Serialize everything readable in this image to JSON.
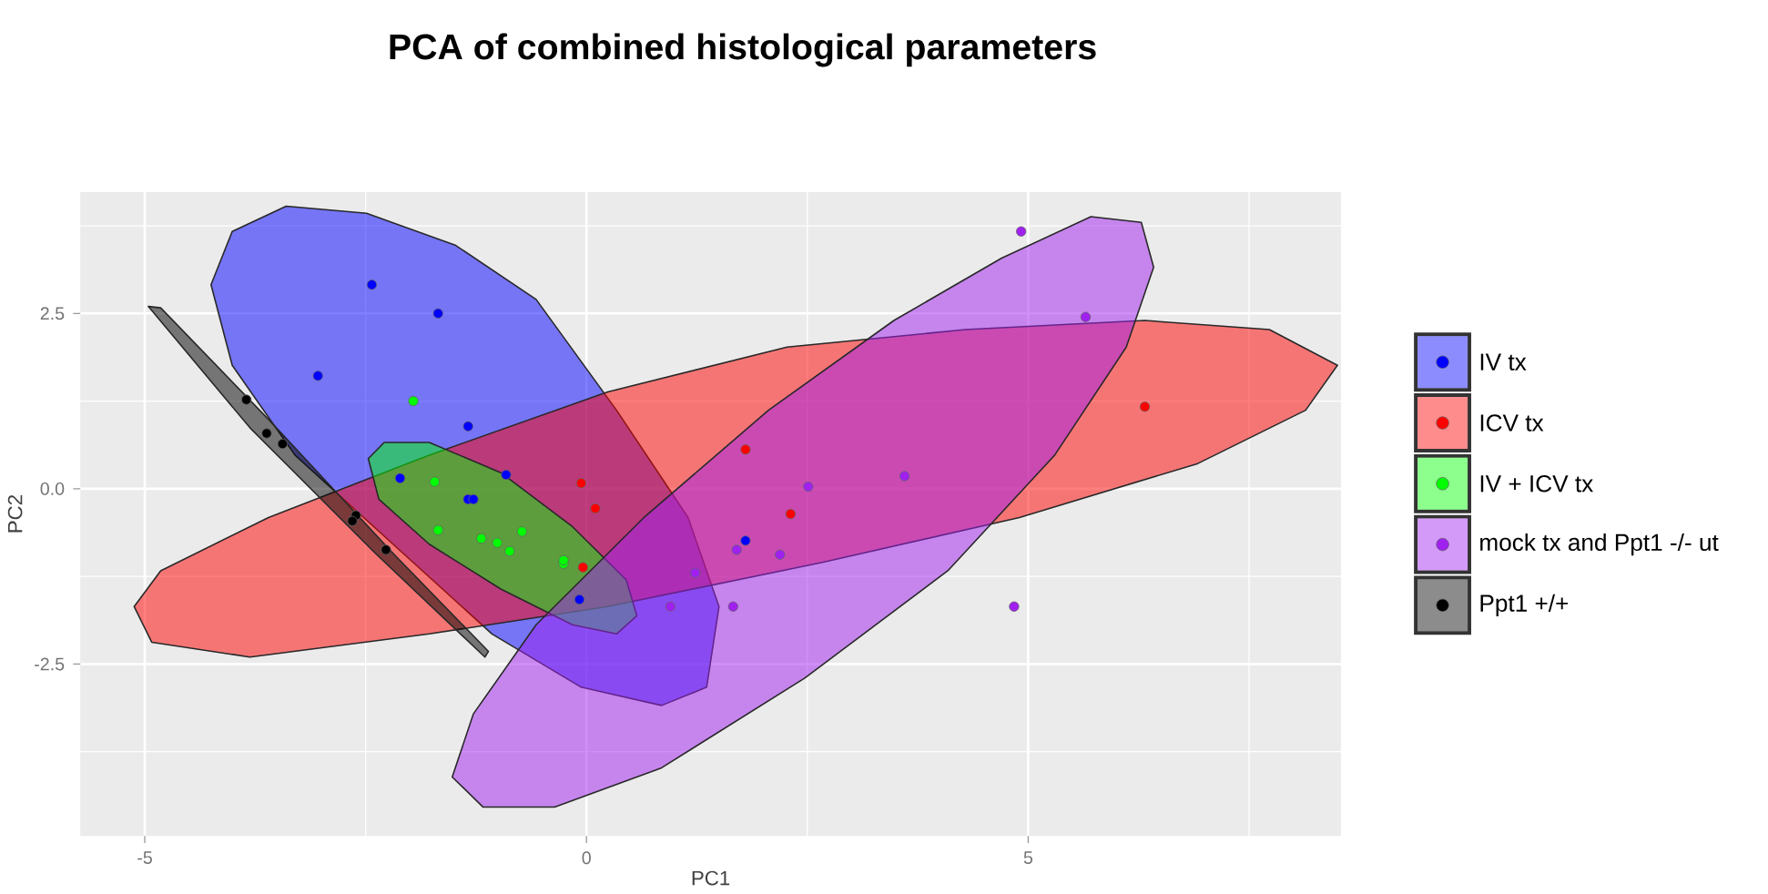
{
  "chart_data": {
    "type": "scatter",
    "title": "PCA of combined histological parameters",
    "xlabel": "PC1",
    "ylabel": "PC2",
    "xlim": [
      -5.73,
      8.54
    ],
    "ylim": [
      -4.95,
      4.23
    ],
    "xticks": [
      -5,
      0,
      5
    ],
    "yticks": [
      -2.5,
      {
        "value": 0,
        "label": "0.0"
      },
      2.5
    ],
    "grid": true,
    "legend": "right",
    "marker": "circle",
    "series": [
      {
        "type": "area",
        "marker": "none",
        "color": "#0000ff",
        "x": [
          -4.25,
          -4.01,
          -3.4,
          -2.49,
          -1.48,
          -0.57,
          0.34,
          1.15,
          1.5,
          1.36,
          0.85,
          -0.06,
          -1.07,
          -2.19,
          -3.3,
          -4.01
        ],
        "values": [
          2.91,
          3.67,
          4.03,
          3.93,
          3.47,
          2.7,
          1.12,
          -0.41,
          -1.68,
          -2.83,
          -3.09,
          -2.83,
          -2.07,
          -0.79,
          0.48,
          1.76
        ]
      },
      {
        "type": "area",
        "marker": "none",
        "color": "#ff0000",
        "x": [
          -5.12,
          -4.82,
          -3.6,
          -1.78,
          0.24,
          2.27,
          4.29,
          6.32,
          7.73,
          8.5,
          8.14,
          6.92,
          4.9,
          2.67,
          0.24,
          -1.78,
          -3.81,
          -4.92
        ],
        "values": [
          -1.68,
          -1.17,
          -0.41,
          0.48,
          1.38,
          2.02,
          2.27,
          2.4,
          2.27,
          1.76,
          1.12,
          0.36,
          -0.41,
          -1.05,
          -1.68,
          -2.07,
          -2.4,
          -2.19
        ]
      },
      {
        "type": "area",
        "marker": "none",
        "color": "#00ff00",
        "x": [
          -2.47,
          -2.29,
          -1.78,
          -0.97,
          -0.16,
          0.45,
          0.57,
          0.34,
          -0.16,
          -0.97,
          -1.78,
          -2.35
        ],
        "values": [
          0.43,
          0.66,
          0.66,
          0.23,
          -0.54,
          -1.3,
          -1.81,
          -2.07,
          -1.94,
          -1.43,
          -0.79,
          -0.15
        ]
      },
      {
        "type": "area",
        "marker": "none",
        "color": "#a020f0",
        "x": [
          -1.52,
          -1.28,
          -0.57,
          0.65,
          2.06,
          3.48,
          4.7,
          5.71,
          6.28,
          6.42,
          6.11,
          5.3,
          4.09,
          2.47,
          0.85,
          -0.36,
          -1.17
        ],
        "values": [
          -4.11,
          -3.21,
          -1.94,
          -0.41,
          1.12,
          2.4,
          3.29,
          3.88,
          3.8,
          3.16,
          2.02,
          0.48,
          -1.17,
          -2.7,
          -3.98,
          -4.54,
          -4.54
        ]
      },
      {
        "type": "area",
        "marker": "none",
        "color": "#000000",
        "x": [
          -4.96,
          -4.82,
          -3.6,
          -2.19,
          -1.11,
          -1.15,
          -2.39,
          -3.81
        ],
        "values": [
          2.6,
          2.58,
          0.99,
          -0.92,
          -2.32,
          -2.4,
          -0.92,
          0.87
        ]
      },
      {
        "name": "IV tx",
        "color": "#0000ff",
        "x": [
          -2.43,
          -1.68,
          -3.04,
          -1.34,
          -0.91,
          -2.11,
          -1.34,
          -1.28,
          -0.08,
          1.8
        ],
        "values": [
          2.91,
          2.5,
          1.61,
          0.89,
          0.2,
          0.15,
          -0.15,
          -0.15,
          -1.58,
          -0.74
        ]
      },
      {
        "name": "ICV tx",
        "color": "#ff0000",
        "x": [
          -0.06,
          0.1,
          -0.04,
          1.8,
          2.31,
          6.32
        ],
        "values": [
          0.08,
          -0.28,
          -1.12,
          0.56,
          -0.36,
          1.17
        ]
      },
      {
        "name": "IV + ICV tx",
        "color": "#00ff00",
        "x": [
          -1.96,
          -1.72,
          -1.68,
          -1.19,
          -1.01,
          -0.87,
          -0.73,
          -0.26,
          -0.26
        ],
        "values": [
          1.25,
          0.1,
          -0.59,
          -0.71,
          -0.77,
          -0.89,
          -0.61,
          -1.07,
          -1.02
        ]
      },
      {
        "name": "mock tx and Ppt1 -/- ut",
        "color": "#a020f0",
        "x": [
          4.92,
          5.65,
          3.6,
          2.51,
          2.19,
          1.7,
          1.23,
          0.95,
          1.66,
          4.84
        ],
        "values": [
          3.67,
          2.45,
          0.18,
          0.03,
          -0.94,
          -0.87,
          -1.2,
          -1.68,
          -1.68,
          -1.68
        ]
      },
      {
        "name": "Ppt1 +/+",
        "color": "#000000",
        "x": [
          -3.85,
          -3.62,
          -3.44,
          -2.61,
          -2.65,
          -2.27
        ],
        "values": [
          1.27,
          0.79,
          0.64,
          -0.38,
          -0.46,
          -0.87
        ]
      }
    ]
  }
}
